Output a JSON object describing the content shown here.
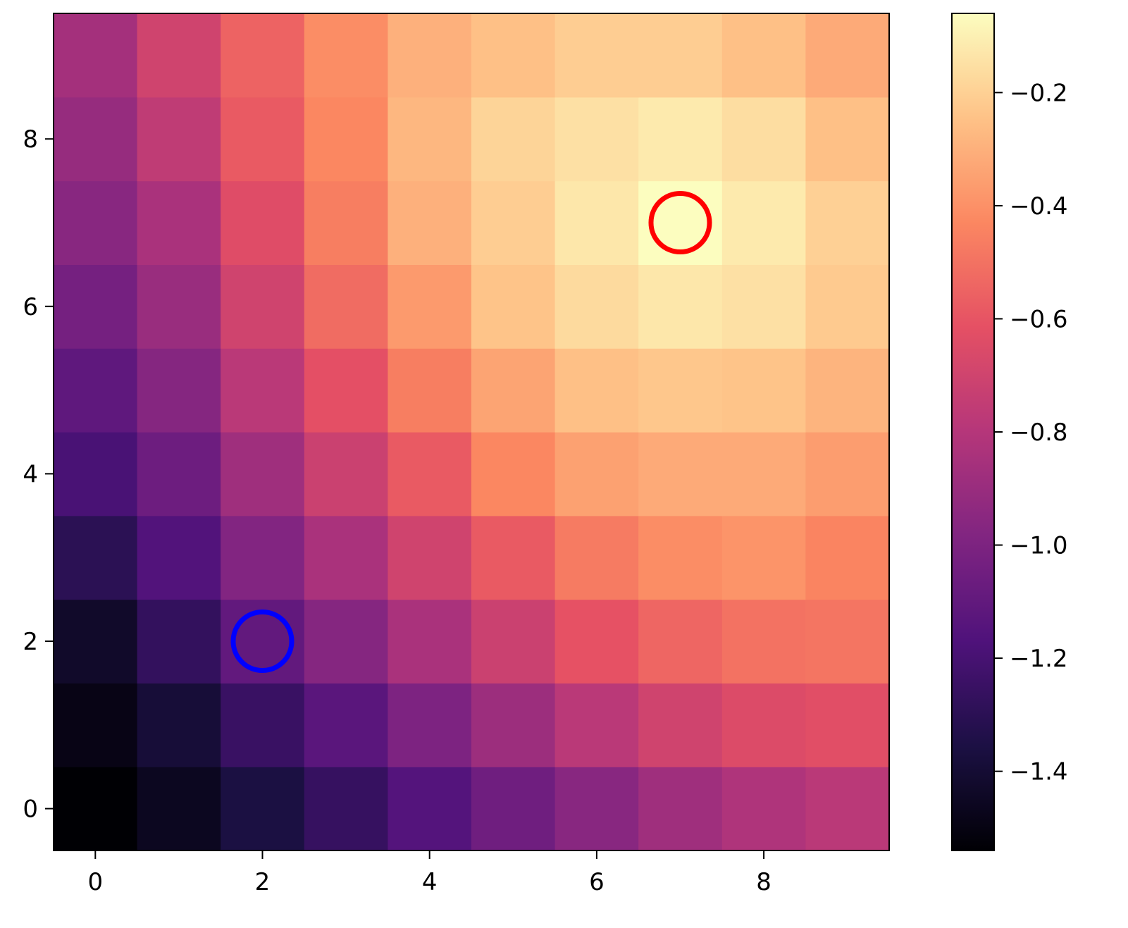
{
  "chart_data": {
    "type": "heatmap",
    "colormap": "magma",
    "origin": "lower",
    "x": [
      0,
      1,
      2,
      3,
      4,
      5,
      6,
      7,
      8,
      9
    ],
    "y": [
      0,
      1,
      2,
      3,
      4,
      5,
      6,
      7,
      8,
      9
    ],
    "xlim": [
      -0.5,
      9.5
    ],
    "ylim": [
      -0.5,
      9.5
    ],
    "xticks": [
      0,
      2,
      4,
      6,
      8
    ],
    "yticks": [
      0,
      2,
      4,
      6,
      8
    ],
    "xtick_labels": [
      "0",
      "2",
      "4",
      "6",
      "8"
    ],
    "ytick_labels": [
      "0",
      "2",
      "4",
      "6",
      "8"
    ],
    "colorbar": {
      "range": [
        -1.54,
        -0.06
      ],
      "ticks": [
        -1.4,
        -1.2,
        -1.0,
        -0.8,
        -0.6,
        -0.4,
        -0.2
      ],
      "tick_labels": [
        "−1.4",
        "−1.2",
        "−1.0",
        "−0.8",
        "−0.6",
        "−0.4",
        "−0.2"
      ]
    },
    "values": [
      [
        -1.54,
        -1.46,
        -1.36,
        -1.26,
        -1.15,
        -1.05,
        -0.96,
        -0.88,
        -0.82,
        -0.78
      ],
      [
        -1.49,
        -1.39,
        -1.25,
        -1.13,
        -1.0,
        -0.89,
        -0.78,
        -0.7,
        -0.65,
        -0.63
      ],
      [
        -1.43,
        -1.27,
        -1.1,
        -0.97,
        -0.84,
        -0.72,
        -0.61,
        -0.54,
        -0.5,
        -0.49
      ],
      [
        -1.3,
        -1.16,
        -0.98,
        -0.84,
        -0.7,
        -0.58,
        -0.47,
        -0.41,
        -0.39,
        -0.44
      ],
      [
        -1.19,
        -1.06,
        -0.88,
        -0.72,
        -0.58,
        -0.43,
        -0.35,
        -0.32,
        -0.32,
        -0.36
      ],
      [
        -1.11,
        -0.97,
        -0.78,
        -0.62,
        -0.46,
        -0.34,
        -0.25,
        -0.23,
        -0.24,
        -0.29
      ],
      [
        -1.03,
        -0.9,
        -0.7,
        -0.52,
        -0.37,
        -0.24,
        -0.17,
        -0.13,
        -0.15,
        -0.22
      ],
      [
        -0.96,
        -0.84,
        -0.64,
        -0.46,
        -0.3,
        -0.21,
        -0.13,
        -0.06,
        -0.12,
        -0.2
      ],
      [
        -0.91,
        -0.76,
        -0.58,
        -0.43,
        -0.28,
        -0.19,
        -0.15,
        -0.12,
        -0.16,
        -0.25
      ],
      [
        -0.86,
        -0.7,
        -0.55,
        -0.41,
        -0.3,
        -0.25,
        -0.21,
        -0.21,
        -0.25,
        -0.32
      ]
    ],
    "markers": [
      {
        "x": 7,
        "y": 7,
        "color": "#ff0000",
        "shape": "circle"
      },
      {
        "x": 2,
        "y": 2,
        "color": "#0000ff",
        "shape": "circle"
      }
    ],
    "title": "",
    "xlabel": "",
    "ylabel": ""
  }
}
